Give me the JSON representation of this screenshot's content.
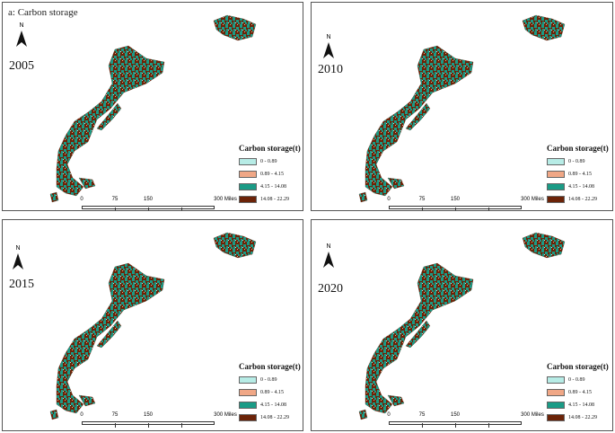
{
  "figure_title": "a: Carbon storage",
  "panels": [
    {
      "year": "2005"
    },
    {
      "year": "2010"
    },
    {
      "year": "2015"
    },
    {
      "year": "2020"
    }
  ],
  "north_label": "N",
  "legend": {
    "title": "Carbon storage(t)",
    "classes": [
      {
        "label": "0 - 0.89",
        "color": "#b7ece6"
      },
      {
        "label": "0.89 - 4.15",
        "color": "#f0a786"
      },
      {
        "label": "4.15 - 14.08",
        "color": "#1a9b86"
      },
      {
        "label": "14.08 - 22.29",
        "color": "#6b2308"
      }
    ]
  },
  "scale_bar": {
    "ticks": [
      "0",
      "75",
      "150",
      "300 Miles"
    ]
  }
}
